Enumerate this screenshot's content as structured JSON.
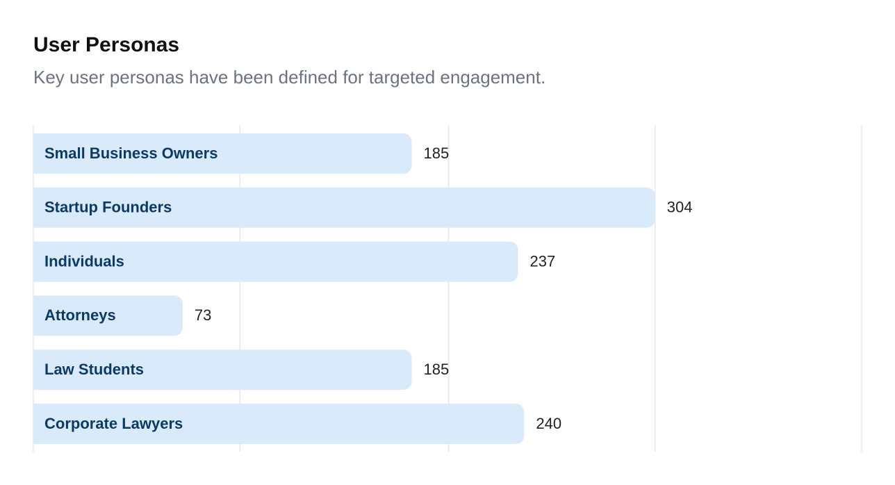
{
  "chart_data": {
    "type": "bar",
    "orientation": "horizontal",
    "title": "User Personas",
    "subtitle": "Key user personas have been defined for targeted engagement.",
    "categories": [
      "Small Business Owners",
      "Startup Founders",
      "Individuals",
      "Attorneys",
      "Law Students",
      "Corporate Lawyers"
    ],
    "values": [
      185,
      304,
      237,
      73,
      185,
      240
    ],
    "color": "#d9eafb",
    "xlim": [
      0,
      405
    ],
    "xticks": [
      0,
      101,
      203,
      304,
      405
    ],
    "grid": true
  }
}
